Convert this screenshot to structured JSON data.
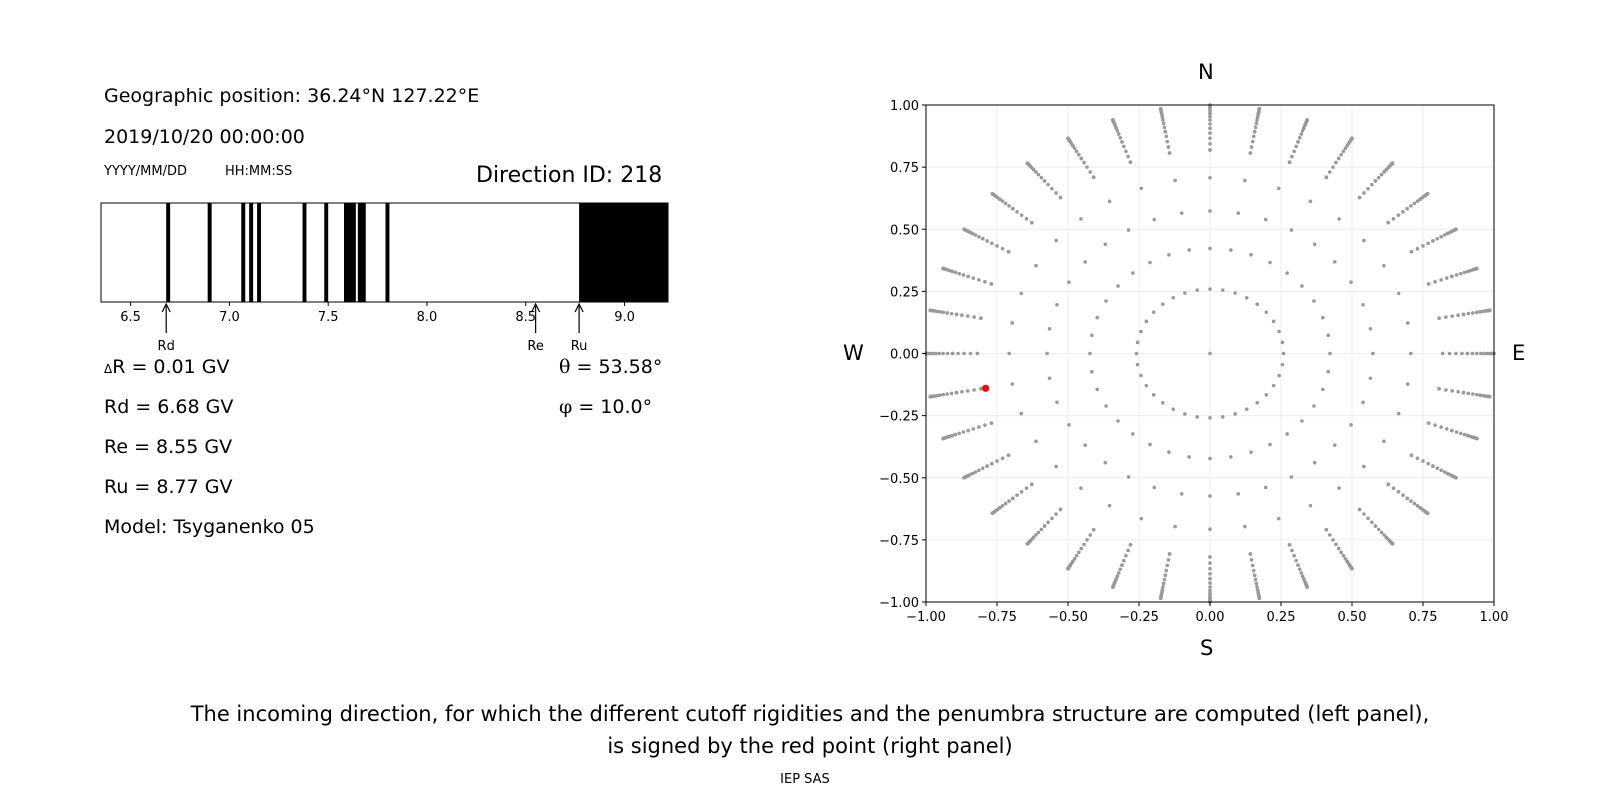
{
  "left_panel": {
    "geo_position": "Geographic position: 36.24°N 127.22°E",
    "datetime": "2019/10/20 00:00:00",
    "date_format": "YYYY/MM/DD",
    "time_format": "HH:MM:SS",
    "direction_id": "Direction ID: 218",
    "delta_r_symbol": "Δ",
    "delta_r": "R = 0.01 GV",
    "rd": "Rd = 6.68 GV",
    "re": "Re = 8.55 GV",
    "ru": "Ru = 8.77 GV",
    "model": "Model: Tsyganenko 05",
    "theta_symbol": "θ",
    "theta": " = 53.58°",
    "phi_symbol": "φ",
    "phi": " = 10.0°"
  },
  "compass": {
    "n": "N",
    "s": "S",
    "w": "W",
    "e": "E"
  },
  "caption": {
    "line1": "The incoming direction, for which the different cutoff rigidities and the penumbra structure are computed (left panel),",
    "line2": "is signed by the red point (right panel)"
  },
  "footer": "IEP SAS",
  "chart_data": [
    {
      "type": "penumbra_bar",
      "xlim": [
        6.35,
        9.22
      ],
      "xticks": [
        6.5,
        7.0,
        7.5,
        8.0,
        8.5,
        9.0
      ],
      "xtick_labels": [
        "6.5",
        "7.0",
        "7.5",
        "8.0",
        "8.5",
        "9.0"
      ],
      "forbidden_intervals": [
        [
          6.68,
          6.7
        ],
        [
          6.89,
          6.91
        ],
        [
          7.06,
          7.08
        ],
        [
          7.1,
          7.12
        ],
        [
          7.14,
          7.16
        ],
        [
          7.37,
          7.39
        ],
        [
          7.48,
          7.5
        ],
        [
          7.58,
          7.64
        ],
        [
          7.65,
          7.69
        ],
        [
          7.79,
          7.81
        ],
        [
          8.77,
          9.22
        ]
      ],
      "markers": [
        {
          "label": "Rd",
          "value": 6.68
        },
        {
          "label": "Re",
          "value": 8.55
        },
        {
          "label": "Ru",
          "value": 8.77
        }
      ],
      "colors": {
        "forbidden": "#000000",
        "allowed": "#ffffff"
      }
    },
    {
      "type": "scatter",
      "xlim": [
        -1,
        1
      ],
      "ylim": [
        -1,
        1
      ],
      "xticks": [
        -1.0,
        -0.75,
        -0.5,
        -0.25,
        0.0,
        0.25,
        0.5,
        0.75,
        1.0
      ],
      "xtick_labels": [
        "−1.00",
        "−0.75",
        "−0.50",
        "−0.25",
        "0.00",
        "0.25",
        "0.50",
        "0.75",
        "1.00"
      ],
      "yticks": [
        -1.0,
        -0.75,
        -0.5,
        -0.25,
        0.0,
        0.25,
        0.5,
        0.75,
        1.0
      ],
      "ytick_labels": [
        "−1.00",
        "−0.75",
        "−0.50",
        "−0.25",
        "0.00",
        "0.25",
        "0.50",
        "0.75",
        "1.00"
      ],
      "grid": true,
      "directions_grid": {
        "zenith_angles_deg": [
          0,
          15,
          25,
          35,
          45,
          55,
          65,
          75,
          80,
          85,
          90
        ],
        "azimuth_step_deg_by_zenith": {
          "15": 10,
          "25": 10
        },
        "default_azimuth_step_deg": 10,
        "projection": "sin(zenith)",
        "color": "#999999"
      },
      "highlight_point": {
        "x": -0.79,
        "y": -0.14,
        "color": "#ff0000"
      }
    }
  ]
}
